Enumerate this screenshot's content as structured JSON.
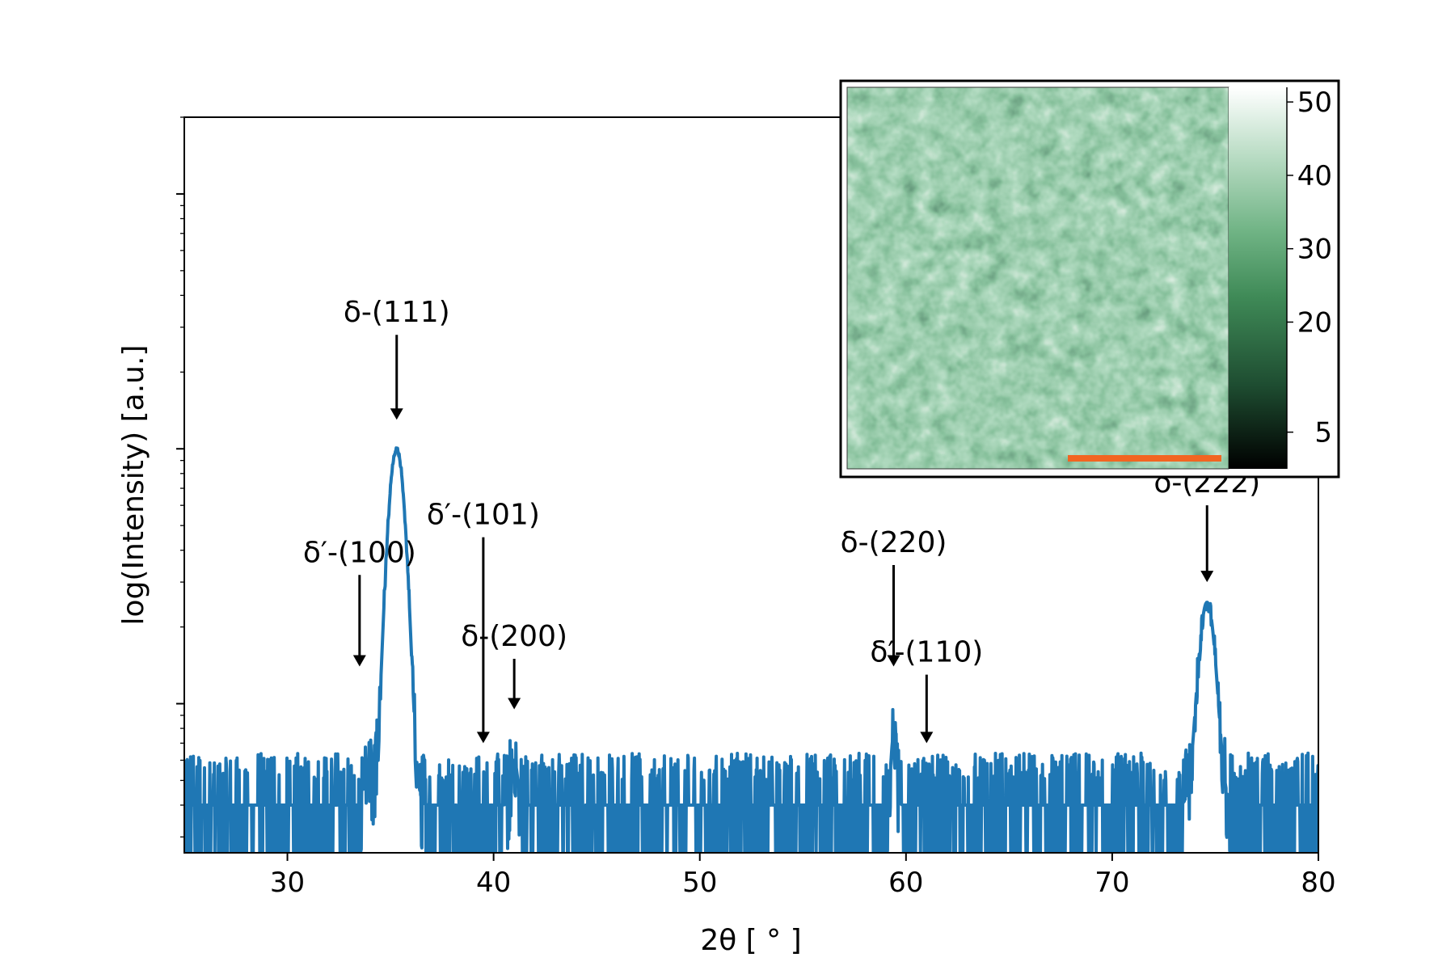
{
  "chart_data": {
    "type": "line",
    "xlabel": "2θ [ ° ]",
    "ylabel": "log(Intensity) [a.u.]",
    "xlim": [
      25,
      80
    ],
    "y_scale": "log",
    "ylim": [
      2.6,
      2000
    ],
    "x_ticks": [
      {
        "value": 30,
        "label": "30"
      },
      {
        "value": 40,
        "label": "40"
      },
      {
        "value": 50,
        "label": "50"
      },
      {
        "value": 60,
        "label": "60"
      },
      {
        "value": 70,
        "label": "70"
      },
      {
        "value": 80,
        "label": "80"
      }
    ],
    "grid": false,
    "series_color": "#1f77b4",
    "background_level": 4,
    "peaks": [
      {
        "center": 35.3,
        "height": 95,
        "width": 0.35
      },
      {
        "center": 74.6,
        "height": 21,
        "width": 0.35
      },
      {
        "center": 59.4,
        "height": 3.5,
        "width": 0.12
      },
      {
        "center": 41.0,
        "height": 2.0,
        "width": 0.15
      },
      {
        "center": 33.9,
        "height": 1.8,
        "width": 0.15
      }
    ],
    "annotations": [
      {
        "label": "δ′-(100)",
        "x": 33.5,
        "arrow_tip_y": 14,
        "arrow_tail_y": 32
      },
      {
        "label": "δ-(111)",
        "x": 35.3,
        "arrow_tip_y": 130,
        "arrow_tail_y": 280
      },
      {
        "label": "δ′-(101)",
        "x": 39.5,
        "arrow_tip_y": 7.0,
        "arrow_tail_y": 45
      },
      {
        "label": "δ-(200)",
        "x": 41.0,
        "arrow_tip_y": 9.5,
        "arrow_tail_y": 15
      },
      {
        "label": "δ-(220)",
        "x": 59.4,
        "arrow_tip_y": 14,
        "arrow_tail_y": 35
      },
      {
        "label": "δ′-(110)",
        "x": 61.0,
        "arrow_tip_y": 7.0,
        "arrow_tail_y": 13
      },
      {
        "label": "δ-(222)",
        "x": 74.6,
        "arrow_tip_y": 30,
        "arrow_tail_y": 60
      }
    ]
  },
  "inset": {
    "colormap": [
      "#000000",
      "#1e4d31",
      "#3f8a57",
      "#6fb384",
      "#b9dcc4",
      "#ffffff"
    ],
    "colorbar_ticks": [
      {
        "value": 5,
        "label": "5"
      },
      {
        "value": 20,
        "label": "20"
      },
      {
        "value": 30,
        "label": "30"
      },
      {
        "value": 40,
        "label": "40"
      },
      {
        "value": 50,
        "label": "50"
      }
    ],
    "colorbar_range": [
      0,
      52
    ],
    "scale_bar_color": "#f26522"
  }
}
